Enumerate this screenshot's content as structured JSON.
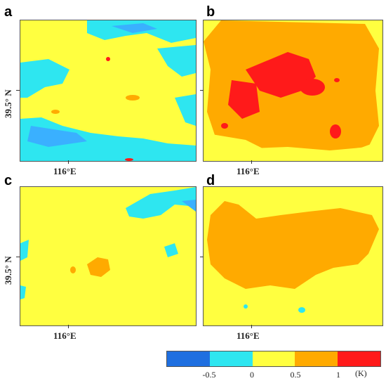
{
  "panels": [
    {
      "label": "a",
      "xtick": "116°E",
      "ytick": "39.5° N"
    },
    {
      "label": "b",
      "xtick": "116°E",
      "ytick": ""
    },
    {
      "label": "c",
      "xtick": "116°E",
      "ytick": "39.5° N"
    },
    {
      "label": "d",
      "xtick": "116°E",
      "ytick": ""
    }
  ],
  "colorbar": {
    "colors": [
      "#1f6fe0",
      "#2ee6f0",
      "#ffff40",
      "#ffaa00",
      "#ff1a1a",
      "#e6061e"
    ],
    "tick_labels": [
      "-0.5",
      "0",
      "0.5",
      "1"
    ],
    "unit": "(K)"
  },
  "legend_levels": {
    "blue": "< -0.5",
    "cyan": "-0.5 to 0",
    "yellow": "0 to 0.5",
    "orange": "0.5 to 1",
    "red": "> 1"
  }
}
